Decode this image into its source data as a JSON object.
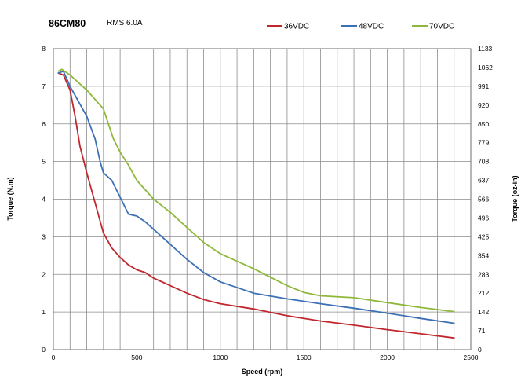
{
  "chart_data": {
    "type": "line",
    "title": "86CM80",
    "subtitle": "RMS 6.0A",
    "xlabel": "Speed (rpm)",
    "ylabel": "Torque (N.m)",
    "y2label": "Torque (oz-in)",
    "xlim": [
      0,
      2500
    ],
    "ylim": [
      0,
      8
    ],
    "x_ticks": [
      "0",
      "500",
      "1000",
      "1500",
      "2000",
      "2500"
    ],
    "y_ticks": [
      "0",
      "1",
      "2",
      "3",
      "4",
      "5",
      "6",
      "7",
      "8"
    ],
    "y2_ticks": [
      "0",
      "71",
      "142",
      "212",
      "283",
      "354",
      "425",
      "496",
      "566",
      "637",
      "708",
      "779",
      "850",
      "920",
      "991",
      "1062",
      "1133"
    ],
    "grid": true,
    "legend_position": "top",
    "series": [
      {
        "name": "36VDC",
        "color": "#c0272d",
        "x": [
          30,
          60,
          100,
          130,
          160,
          200,
          250,
          300,
          350,
          400,
          450,
          500,
          550,
          600,
          700,
          800,
          900,
          1000,
          1200,
          1400,
          1600,
          1800,
          2000,
          2200,
          2400
        ],
        "y": [
          7.35,
          7.3,
          6.9,
          6.2,
          5.4,
          4.7,
          3.9,
          3.1,
          2.7,
          2.45,
          2.25,
          2.12,
          2.05,
          1.9,
          1.7,
          1.5,
          1.33,
          1.22,
          1.08,
          0.9,
          0.76,
          0.65,
          0.53,
          0.42,
          0.31
        ]
      },
      {
        "name": "48VDC",
        "color": "#3b6fb6",
        "x": [
          30,
          60,
          100,
          150,
          200,
          250,
          280,
          300,
          350,
          400,
          450,
          500,
          550,
          600,
          700,
          800,
          900,
          1000,
          1200,
          1400,
          1600,
          1800,
          2000,
          2200,
          2400
        ],
        "y": [
          7.35,
          7.4,
          7.0,
          6.6,
          6.2,
          5.6,
          5.0,
          4.7,
          4.5,
          4.05,
          3.6,
          3.55,
          3.4,
          3.2,
          2.8,
          2.4,
          2.05,
          1.8,
          1.5,
          1.35,
          1.22,
          1.1,
          0.97,
          0.83,
          0.7
        ]
      },
      {
        "name": "70VDC",
        "color": "#8fb83a",
        "x": [
          30,
          50,
          100,
          150,
          200,
          250,
          300,
          330,
          360,
          400,
          450,
          500,
          550,
          600,
          700,
          800,
          900,
          1000,
          1200,
          1400,
          1500,
          1600,
          1800,
          2000,
          2200,
          2400
        ],
        "y": [
          7.4,
          7.45,
          7.3,
          7.1,
          6.9,
          6.65,
          6.4,
          6.0,
          5.6,
          5.25,
          4.9,
          4.5,
          4.25,
          4.0,
          3.65,
          3.25,
          2.85,
          2.55,
          2.15,
          1.7,
          1.52,
          1.43,
          1.38,
          1.25,
          1.12,
          1.01
        ]
      }
    ]
  }
}
